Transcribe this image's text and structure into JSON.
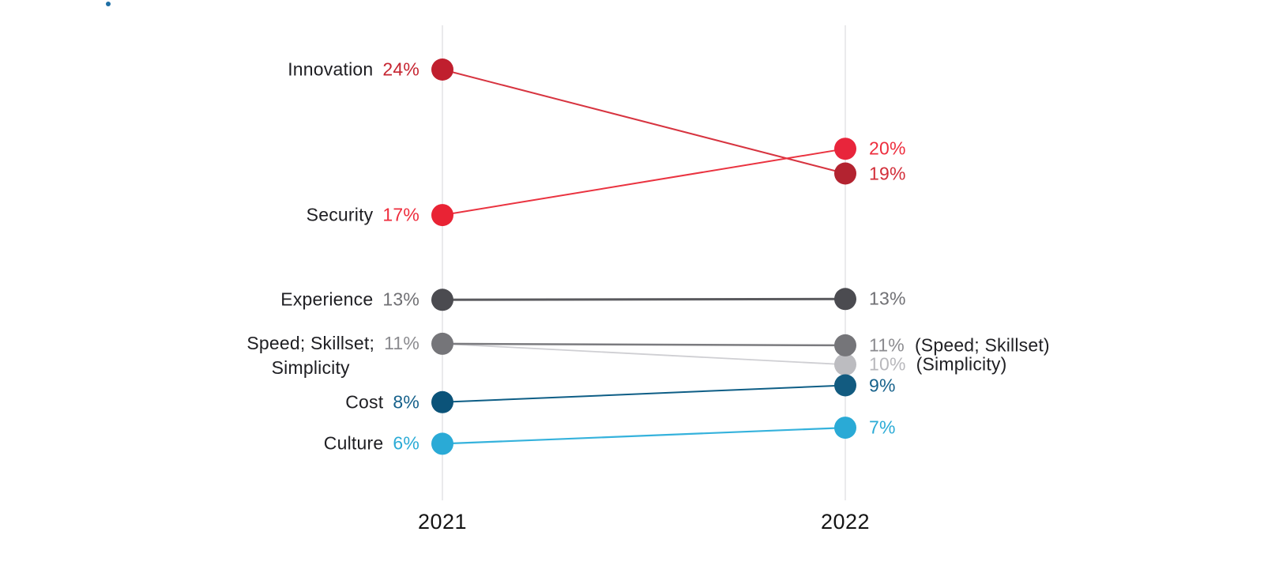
{
  "page": {
    "background": "#ffffff",
    "decorative_dot_color": "#1e6fa5"
  },
  "chart_data": {
    "type": "line",
    "subtype": "slopegraph",
    "title": "",
    "x_labels": [
      "2021",
      "2022"
    ],
    "value_format": "percent",
    "axis_color": "#e4e4e6",
    "category_label_color": "#1e1e22",
    "note_color": "#202024",
    "series": [
      {
        "name": "Innovation",
        "values": [
          24,
          19
        ],
        "left_label": "Innovation",
        "left_value": "24%",
        "right_value": "19%",
        "colors": {
          "dot_left": "#c01f2e",
          "dot_right": "#b32330",
          "line": "#d73440",
          "value_left": "#c62531",
          "value_right": "#d22e39"
        }
      },
      {
        "name": "Security",
        "values": [
          17,
          20
        ],
        "left_label": "Security",
        "left_value": "17%",
        "right_value": "20%",
        "colors": {
          "dot_left": "#e92334",
          "dot_right": "#e8253b",
          "line": "#ea3340",
          "value_left": "#ee2d3d",
          "value_right": "#ee2d3d"
        }
      },
      {
        "name": "Experience",
        "values": [
          13,
          13
        ],
        "left_label": "Experience",
        "left_value": "13%",
        "right_value": "13%",
        "colors": {
          "dot_left": "#4b4b50",
          "dot_right": "#4b4b50",
          "line": "#5a5a5e",
          "value_left": "#707074",
          "value_right": "#707074"
        }
      },
      {
        "name": "Speed; Skillset",
        "values": [
          11,
          11
        ],
        "left_label": "Speed; Skillset;",
        "left_label_line2": "Simplicity",
        "left_value": "11%",
        "right_value": "11%",
        "right_note": "(Speed; Skillset)",
        "colors": {
          "dot_left": "#757579",
          "dot_right": "#757579",
          "line": "#7b7b7f",
          "value_left": "#8b8b8f",
          "value_right": "#8b8b8f"
        }
      },
      {
        "name": "Simplicity",
        "values": [
          11,
          10
        ],
        "left_dot": false,
        "right_value": "10%",
        "right_note": "(Simplicity)",
        "colors": {
          "dot_right": "#bcbcc0",
          "line": "#cfcfd3",
          "value_right": "#b8b8bc"
        }
      },
      {
        "name": "Cost",
        "values": [
          8,
          9
        ],
        "left_label": "Cost",
        "left_value": "8%",
        "right_value": "9%",
        "colors": {
          "dot_left": "#0b5379",
          "dot_right": "#125b80",
          "line": "#0e5e86",
          "value_left": "#16618b",
          "value_right": "#16618b"
        }
      },
      {
        "name": "Culture",
        "values": [
          6,
          7
        ],
        "left_label": "Culture",
        "left_value": "6%",
        "right_value": "7%",
        "colors": {
          "dot_left": "#2aaad6",
          "dot_right": "#2aaad6",
          "line": "#35b2dc",
          "value_left": "#2babd6",
          "value_right": "#2babd6"
        }
      }
    ]
  }
}
